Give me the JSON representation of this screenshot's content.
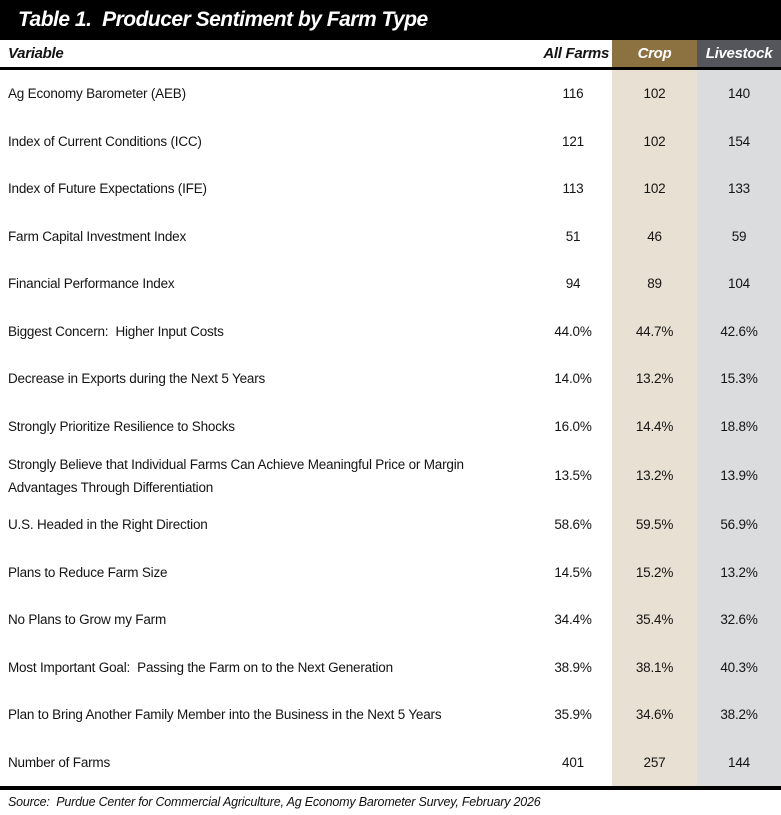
{
  "chart_data": {
    "type": "table",
    "title": "Table 1.  Producer Sentiment by Farm Type",
    "columns": [
      "Variable",
      "All Farms",
      "Crop",
      "Livestock"
    ],
    "rows": [
      {
        "label": "Ag Economy Barometer (AEB)",
        "all_farms": "116",
        "crop": "102",
        "livestock": "140"
      },
      {
        "label": "Index of Current Conditions (ICC)",
        "all_farms": "121",
        "crop": "102",
        "livestock": "154"
      },
      {
        "label": "Index of Future Expectations (IFE)",
        "all_farms": "113",
        "crop": "102",
        "livestock": "133"
      },
      {
        "label": "Farm Capital Investment Index",
        "all_farms": "51",
        "crop": "46",
        "livestock": "59"
      },
      {
        "label": "Financial Performance Index",
        "all_farms": "94",
        "crop": "89",
        "livestock": "104"
      },
      {
        "label": "Biggest Concern:  Higher Input Costs",
        "all_farms": "44.0%",
        "crop": "44.7%",
        "livestock": "42.6%"
      },
      {
        "label": "Decrease in Exports during the Next 5 Years",
        "all_farms": "14.0%",
        "crop": "13.2%",
        "livestock": "15.3%"
      },
      {
        "label": "Strongly Prioritize Resilience to Shocks",
        "all_farms": "16.0%",
        "crop": "14.4%",
        "livestock": "18.8%"
      },
      {
        "label": "Strongly Believe that Individual Farms Can Achieve Meaningful Price or Margin Advantages Through Differentiation",
        "all_farms": "13.5%",
        "crop": "13.2%",
        "livestock": "13.9%",
        "two_line": true
      },
      {
        "label": "U.S. Headed in the Right Direction",
        "all_farms": "58.6%",
        "crop": "59.5%",
        "livestock": "56.9%"
      },
      {
        "label": "Plans to Reduce Farm Size",
        "all_farms": "14.5%",
        "crop": "15.2%",
        "livestock": "13.2%"
      },
      {
        "label": "No Plans to Grow my Farm",
        "all_farms": "34.4%",
        "crop": "35.4%",
        "livestock": "32.6%"
      },
      {
        "label": "Most Important Goal:  Passing the Farm on to the Next Generation",
        "all_farms": "38.9%",
        "crop": "38.1%",
        "livestock": "40.3%"
      },
      {
        "label": "Plan to Bring Another Family Member into the Business in the Next 5 Years",
        "all_farms": "35.9%",
        "crop": "34.6%",
        "livestock": "38.2%"
      },
      {
        "label": "Number of Farms",
        "all_farms": "401",
        "crop": "257",
        "livestock": "144"
      }
    ],
    "source": "Source:  Purdue Center for Commercial Agriculture, Ag Economy Barometer Survey, February 2026",
    "legend": "none",
    "grid": "off"
  },
  "colors": {
    "title_bar_bg": "#000000",
    "crop_header_bg": "#8C7240",
    "crop_body_bg": "#E8E0D3",
    "livestock_header_bg": "#54565B",
    "livestock_body_bg": "#DBDCDD"
  }
}
